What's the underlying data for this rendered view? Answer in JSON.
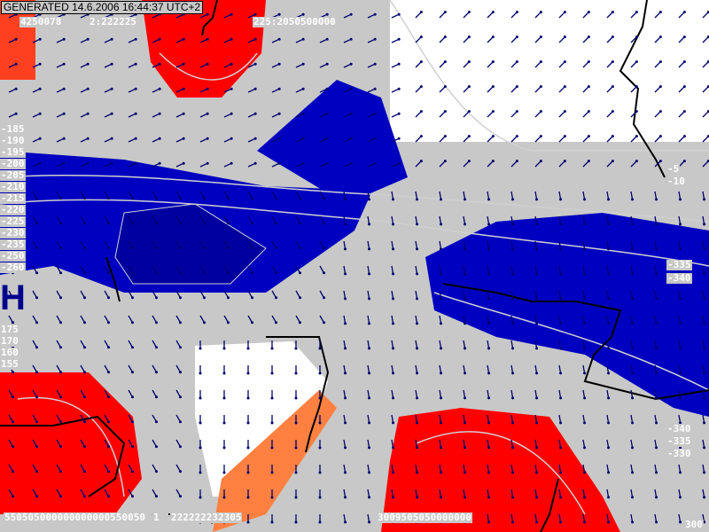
{
  "header": {
    "generated": "GENERATED 14.6.2006 16:44:37 UTC+2"
  },
  "pressure_center": "H",
  "colors": {
    "background": "#c8c8c8",
    "warm": "#ff0000",
    "warm_light": "#ff8040",
    "cold": "#0000c0",
    "contour": "#d0d0d0",
    "arrow": "#00006e",
    "border": "#000000",
    "clear": "#ffffff"
  },
  "contour_labels": {
    "top": [
      "4250078",
      "2:222225",
      "225:2050500000"
    ],
    "left": [
      "-185",
      "-190",
      "-195",
      "-200",
      "-205",
      "-210",
      "-215",
      "-220",
      "-225",
      "-230",
      "-235",
      "-250",
      "-260",
      "175",
      "170",
      "160",
      "155"
    ],
    "right": [
      "-5",
      "-10",
      "-335",
      "-340",
      "-340",
      "-335",
      "-330"
    ],
    "bottom": [
      "550505000000000000550050",
      "1",
      "222222232305",
      "3009505050000000",
      "300"
    ]
  }
}
